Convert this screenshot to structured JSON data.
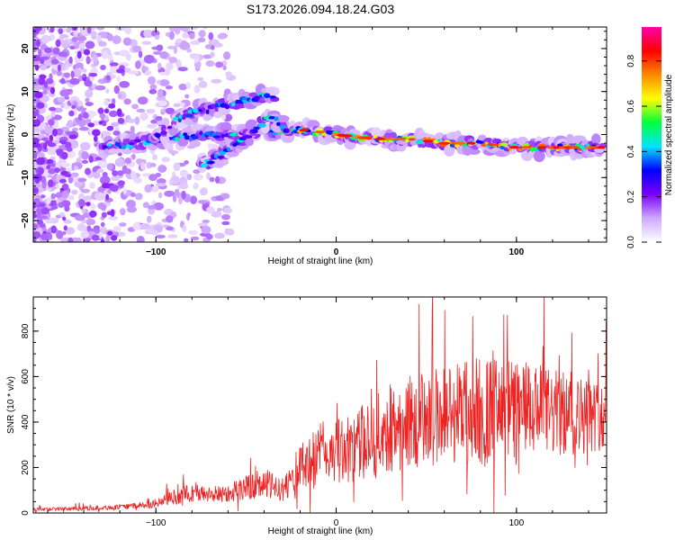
{
  "title": "S173.2026.094.18.24.G03",
  "colors": {
    "snr_line": "#ee2222",
    "colormap": [
      "#ffffff",
      "#cfa8ff",
      "#7a00ff",
      "#0000ff",
      "#00e5ff",
      "#00ff3a",
      "#ffff00",
      "#ff8800",
      "#ff0000",
      "#ff00aa"
    ]
  },
  "chart_data": [
    {
      "type": "heatmap",
      "title": "S173.2026.094.18.24.G03",
      "xlabel": "Height of straight line (km)",
      "ylabel": "Frequency (Hz)",
      "xlim": [
        -168,
        150
      ],
      "ylim": [
        -25,
        25
      ],
      "xticks": [
        -100,
        0,
        100
      ],
      "yticks": [
        -20,
        -10,
        0,
        10,
        20
      ],
      "colorbar": {
        "label": "Normalized spectral amplitude",
        "range": [
          0,
          0.95
        ],
        "ticks": [
          0.0,
          0.2,
          0.4,
          0.6,
          0.8
        ]
      },
      "ridges": [
        {
          "name": "main_trend",
          "points": [
            [
              -130,
              -3
            ],
            [
              -110,
              -2
            ],
            [
              -95,
              -1
            ],
            [
              -75,
              0
            ],
            [
              -60,
              0
            ],
            [
              -50,
              0
            ],
            [
              -30,
              1
            ],
            [
              -15,
              1
            ],
            [
              0,
              0
            ],
            [
              20,
              -1
            ],
            [
              40,
              -1
            ],
            [
              60,
              -2
            ],
            [
              80,
              -2
            ],
            [
              100,
              -3
            ],
            [
              120,
              -3
            ],
            [
              148,
              -3
            ]
          ]
        },
        {
          "name": "upper_arc",
          "points": [
            [
              -100,
              -1
            ],
            [
              -90,
              3
            ],
            [
              -80,
              5
            ],
            [
              -70,
              6
            ],
            [
              -60,
              7
            ],
            [
              -50,
              8
            ],
            [
              -40,
              9
            ],
            [
              -35,
              9
            ]
          ]
        },
        {
          "name": "lower_arc",
          "points": [
            [
              -75,
              -7
            ],
            [
              -65,
              -5
            ],
            [
              -55,
              -2
            ],
            [
              -45,
              1
            ],
            [
              -38,
              4
            ],
            [
              -32,
              3
            ],
            [
              -27,
              1
            ]
          ]
        }
      ]
    },
    {
      "type": "line",
      "xlabel": "Height of straight line (km)",
      "ylabel": "SNR (10 * v/v)",
      "xlim": [
        -168,
        150
      ],
      "ylim": [
        0,
        950
      ],
      "xticks": [
        -100,
        0,
        100
      ],
      "yticks": [
        0,
        200,
        400,
        600,
        800
      ],
      "envelope": {
        "x": [
          -168,
          -120,
          -100,
          -90,
          -80,
          -70,
          -60,
          -50,
          -40,
          -30,
          -20,
          -10,
          0,
          10,
          20,
          30,
          40,
          50,
          60,
          70,
          80,
          90,
          100,
          110,
          120,
          130,
          140,
          150
        ],
        "base": [
          15,
          25,
          40,
          70,
          90,
          80,
          90,
          110,
          130,
          100,
          190,
          260,
          270,
          290,
          330,
          370,
          400,
          420,
          440,
          450,
          450,
          440,
          450,
          450,
          440,
          430,
          430,
          420
        ],
        "spread": [
          10,
          15,
          25,
          50,
          60,
          50,
          60,
          80,
          100,
          70,
          150,
          200,
          200,
          220,
          260,
          280,
          300,
          300,
          320,
          340,
          360,
          350,
          330,
          300,
          280,
          260,
          240,
          200
        ]
      }
    }
  ]
}
